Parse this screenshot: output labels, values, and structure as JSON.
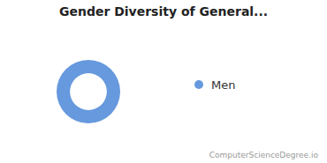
{
  "chart_data": {
    "type": "donut",
    "title": "Gender Diversity of General...",
    "categories": [
      "Men"
    ],
    "values": [
      1
    ],
    "colors": [
      "#6699dd"
    ],
    "legend": "right",
    "annotations": [
      "ComputerScienceDegree.io"
    ]
  }
}
